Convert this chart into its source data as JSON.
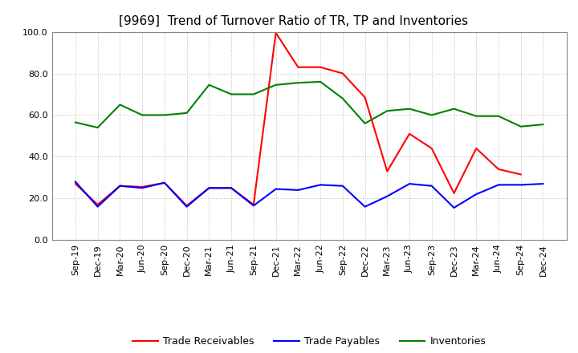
{
  "title": "[9969]  Trend of Turnover Ratio of TR, TP and Inventories",
  "xlabel": "",
  "ylabel": "",
  "ylim": [
    0.0,
    100.0
  ],
  "yticks": [
    0.0,
    20.0,
    40.0,
    60.0,
    80.0,
    100.0
  ],
  "x_labels": [
    "Sep-19",
    "Dec-19",
    "Mar-20",
    "Jun-20",
    "Sep-20",
    "Dec-20",
    "Mar-21",
    "Jun-21",
    "Sep-21",
    "Dec-21",
    "Mar-22",
    "Jun-22",
    "Sep-22",
    "Dec-22",
    "Mar-23",
    "Jun-23",
    "Sep-23",
    "Dec-23",
    "Mar-24",
    "Jun-24",
    "Sep-24",
    "Dec-24"
  ],
  "trade_receivables": [
    27.0,
    17.0,
    26.0,
    25.5,
    27.5,
    16.5,
    25.0,
    25.0,
    17.0,
    99.5,
    83.0,
    83.0,
    80.0,
    68.5,
    33.0,
    51.0,
    44.0,
    22.5,
    44.0,
    34.0,
    31.5,
    null
  ],
  "trade_payables": [
    28.0,
    16.0,
    26.0,
    25.0,
    27.5,
    16.0,
    25.0,
    25.0,
    16.5,
    24.5,
    24.0,
    26.5,
    26.0,
    16.0,
    21.0,
    27.0,
    26.0,
    15.5,
    22.0,
    26.5,
    26.5,
    27.0
  ],
  "inventories": [
    56.5,
    54.0,
    65.0,
    60.0,
    60.0,
    61.0,
    74.5,
    70.0,
    70.0,
    74.5,
    75.5,
    76.0,
    68.0,
    56.0,
    62.0,
    63.0,
    60.0,
    63.0,
    59.5,
    59.5,
    54.5,
    55.5
  ],
  "color_tr": "#ff0000",
  "color_tp": "#0000ff",
  "color_inv": "#008000",
  "legend_labels": [
    "Trade Receivables",
    "Trade Payables",
    "Inventories"
  ],
  "bg_color": "#ffffff",
  "grid_color": "#bbbbbb",
  "title_fontsize": 11,
  "label_fontsize": 9,
  "tick_fontsize": 8
}
